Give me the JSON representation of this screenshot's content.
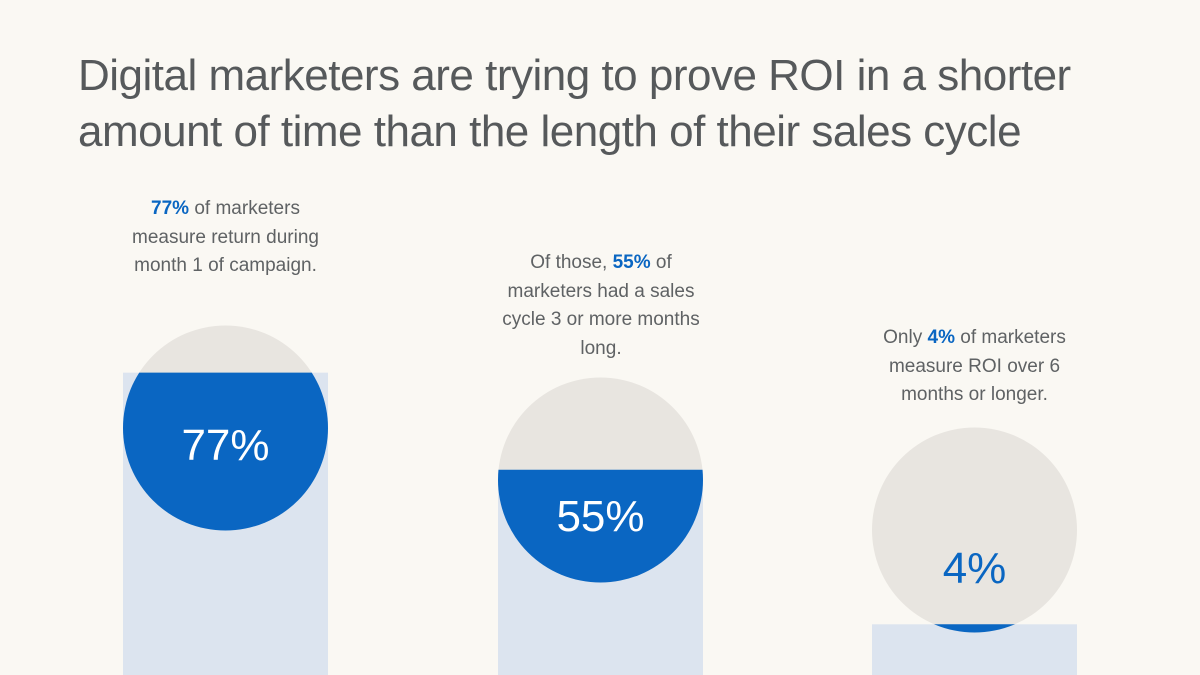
{
  "title": "Digital marketers are trying to prove ROI in a shorter amount of time than the length of their sales cycle",
  "colors": {
    "accent": "#0a66c2",
    "bar": "#dce4ef",
    "circle": "#e8e5e0",
    "text": "#5f6264",
    "background": "#faf8f3"
  },
  "chart_data": {
    "type": "bar",
    "categories": [
      "77%",
      "55%",
      "4%"
    ],
    "values": [
      77,
      55,
      4
    ],
    "ylim": [
      0,
      100
    ],
    "title": "",
    "xlabel": "",
    "ylabel": "",
    "annotations": [
      {
        "highlight": "77%",
        "before": "",
        "after": " of marketers measure return during month 1 of campaign."
      },
      {
        "highlight": "55%",
        "before": "Of those, ",
        "after": " of marketers had a sales cycle 3 or more months long."
      },
      {
        "highlight": "4%",
        "before": "Only ",
        "after": " of marketers measure ROI over 6 months or longer."
      }
    ]
  }
}
